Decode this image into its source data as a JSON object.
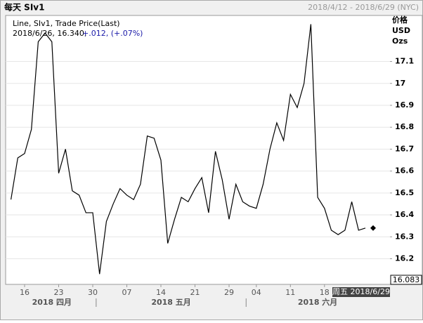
{
  "chart_data": {
    "type": "line",
    "title": "每天 SIv1",
    "date_range": "2018/4/12 - 2018/6/29 (NYC)",
    "series_label": "Line, SIv1, Trade Price(Last)",
    "legend_detail": "2018/6/26, 16.340,",
    "legend_change": "+.012, (+.07%)",
    "y_label": [
      "价格",
      "USD",
      "Ozs"
    ],
    "cursor_value": 16.083,
    "cursor_label": "周五 2018/6/29",
    "categories": [
      "2018/4/12",
      "2018/4/13",
      "2018/4/16",
      "2018/4/17",
      "2018/4/18",
      "2018/4/19",
      "2018/4/20",
      "2018/4/23",
      "2018/4/24",
      "2018/4/25",
      "2018/4/26",
      "2018/4/27",
      "2018/4/30",
      "2018/5/1",
      "2018/5/2",
      "2018/5/3",
      "2018/5/4",
      "2018/5/7",
      "2018/5/8",
      "2018/5/9",
      "2018/5/10",
      "2018/5/11",
      "2018/5/14",
      "2018/5/15",
      "2018/5/16",
      "2018/5/17",
      "2018/5/18",
      "2018/5/21",
      "2018/5/22",
      "2018/5/23",
      "2018/5/24",
      "2018/5/25",
      "2018/5/29",
      "2018/5/30",
      "2018/5/31",
      "2018/6/1",
      "2018/6/4",
      "2018/6/5",
      "2018/6/6",
      "2018/6/7",
      "2018/6/8",
      "2018/6/11",
      "2018/6/12",
      "2018/6/13",
      "2018/6/14",
      "2018/6/15",
      "2018/6/18",
      "2018/6/19",
      "2018/6/20",
      "2018/6/21",
      "2018/6/22",
      "2018/6/25",
      "2018/6/26",
      "2018/6/27",
      "2018/6/28",
      "2018/6/29"
    ],
    "series": [
      {
        "name": "SIv1",
        "color": "#000000",
        "values": [
          16.47,
          16.66,
          16.68,
          16.79,
          17.19,
          17.23,
          17.19,
          16.59,
          16.7,
          16.51,
          16.49,
          16.41,
          16.41,
          16.13,
          16.37,
          16.45,
          16.52,
          16.49,
          16.47,
          16.54,
          16.76,
          16.75,
          16.65,
          16.27,
          16.38,
          16.48,
          16.46,
          16.52,
          16.57,
          16.41,
          16.69,
          16.56,
          16.38,
          16.54,
          16.46,
          16.44,
          16.43,
          16.54,
          16.7,
          16.82,
          16.74,
          16.95,
          16.89,
          17.0,
          17.27,
          16.48,
          16.43,
          16.33,
          16.31,
          16.33,
          16.46,
          16.33,
          16.34,
          null,
          null,
          null
        ]
      }
    ],
    "ylim": [
      16.083,
      17.31
    ],
    "yticks": [
      16.2,
      16.3,
      16.4,
      16.5,
      16.6,
      16.7,
      16.8,
      16.9,
      17,
      17.1
    ],
    "xticks": [
      {
        "value": "2018/4/16",
        "label": "16"
      },
      {
        "value": "2018/4/23",
        "label": "23"
      },
      {
        "value": "2018/4/30",
        "label": "30"
      },
      {
        "value": "2018/5/7",
        "label": "07"
      },
      {
        "value": "2018/5/14",
        "label": "14"
      },
      {
        "value": "2018/5/21",
        "label": "21"
      },
      {
        "value": "2018/5/29",
        "label": "29"
      },
      {
        "value": "2018/6/4",
        "label": "04"
      },
      {
        "value": "2018/6/11",
        "label": "11"
      },
      {
        "value": "2018/6/18",
        "label": "18"
      }
    ],
    "month_labels": [
      "2018 四月",
      "2018 五月",
      "2018 六月"
    ],
    "grid": true
  }
}
